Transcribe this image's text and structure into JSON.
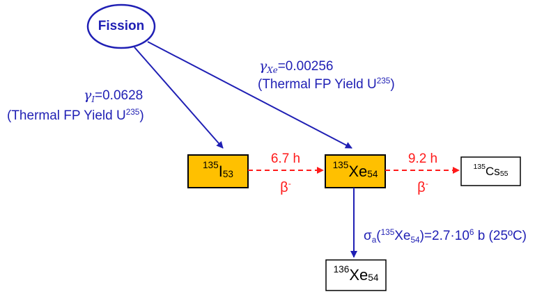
{
  "source": {
    "label": "Fission"
  },
  "yields": {
    "iodine": {
      "symbol": "γ",
      "subscript": "I",
      "value": "=0.0628",
      "note_prefix": "(Thermal FP Yield U",
      "note_sup": "235",
      "note_suffix": ")"
    },
    "xenon": {
      "symbol": "γ",
      "subscript": "Xe",
      "value": "=0.00256",
      "note_prefix": "(Thermal FP Yield U",
      "note_sup": "235",
      "note_suffix": ")"
    }
  },
  "nuclides": {
    "i135": {
      "mass": "135",
      "symbol": "I",
      "z": "53"
    },
    "xe135": {
      "mass": "135",
      "symbol": "Xe",
      "z": "54"
    },
    "cs135": {
      "mass": "135",
      "symbol": "Cs",
      "z": "55"
    },
    "xe136": {
      "mass": "136",
      "symbol": "Xe",
      "z": "54"
    }
  },
  "decays": {
    "i_to_xe": {
      "half_life": "6.7 h",
      "mode": "β",
      "mode_sup": "-"
    },
    "xe_to_cs": {
      "half_life": "9.2 h",
      "mode": "β",
      "mode_sup": "-"
    }
  },
  "absorption": {
    "sigma": "σ",
    "sigma_sub": "a",
    "open": "(",
    "mass": "135",
    "symbol": "Xe",
    "z": "54",
    "value_prefix": ")=2.7·10",
    "exponent": "6",
    "value_suffix": " b (25ºC)"
  },
  "colors": {
    "flow_blue": "#1f1fb4",
    "decay_red": "#ff1a1a",
    "highlight_fill": "#ffc000",
    "plain_fill": "#ffffff"
  }
}
